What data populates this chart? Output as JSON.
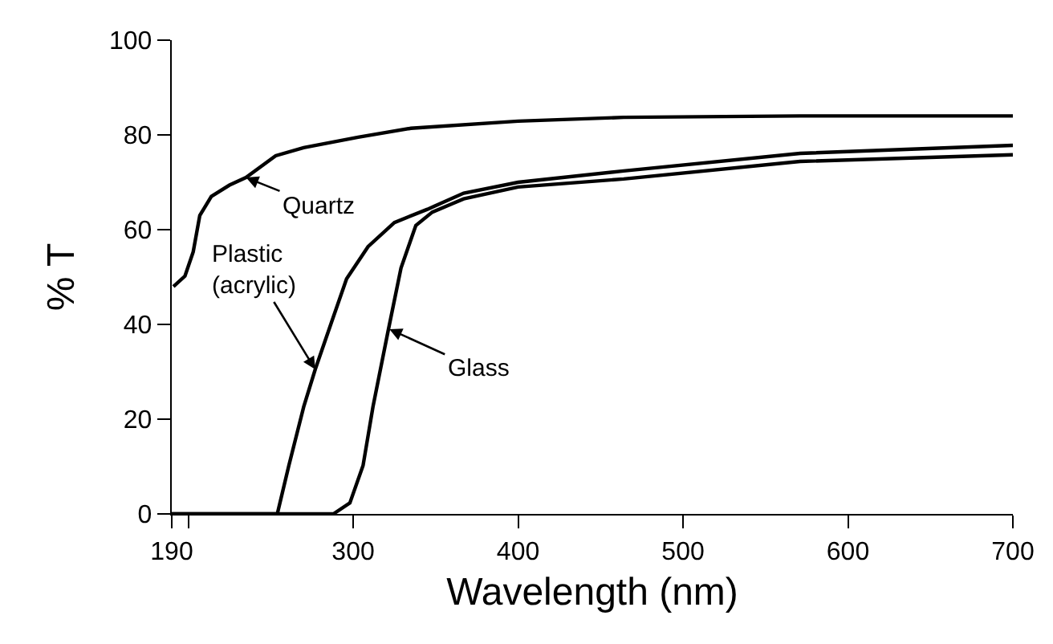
{
  "chart_data": {
    "type": "line",
    "xlabel": "Wavelength (nm)",
    "ylabel": "% T",
    "xlim": [
      190,
      700
    ],
    "xticks": [
      190,
      {
        "value": 200,
        "label": null
      },
      300,
      400,
      500,
      600,
      700
    ],
    "ylim": [
      0,
      100
    ],
    "yticks": [
      0,
      20,
      40,
      60,
      80,
      100
    ],
    "grid": false,
    "marker": "none",
    "line_style": "solid",
    "series": [
      {
        "color": "#000000",
        "x": [
          191,
          198,
          203,
          207,
          214,
          225,
          235,
          253,
          270,
          303,
          335,
          400,
          464,
          571,
          700
        ],
        "values": [
          48,
          50.2,
          55.3,
          63,
          67,
          69.4,
          71,
          75.6,
          77.3,
          79.5,
          81.4,
          82.9,
          83.7,
          84,
          84
        ]
      },
      {
        "color": "#000000",
        "x": [
          190,
          254,
          261,
          270,
          277,
          287,
          296,
          309,
          325,
          345,
          367,
          400,
          464,
          571,
          700
        ],
        "values": [
          0,
          0,
          10.2,
          22.6,
          30.5,
          40.6,
          49.6,
          56.4,
          61.5,
          64.3,
          67.7,
          70,
          72.4,
          76.1,
          77.8
        ]
      },
      {
        "color": "#000000",
        "x": [
          190,
          288,
          298,
          306,
          312,
          321,
          329,
          338,
          348,
          367,
          400,
          464,
          571,
          700
        ],
        "values": [
          0,
          0,
          2.3,
          10.2,
          22.6,
          38.3,
          51.9,
          60.9,
          63.7,
          66.5,
          69,
          70.7,
          74.4,
          75.8
        ]
      }
    ],
    "annotations": [
      {
        "text": "Quartz",
        "x": 235,
        "y": 71
      },
      {
        "text": "Plastic\n(acrylic)",
        "x": 277,
        "y": 30.5
      },
      {
        "text": "Glass",
        "x": 322,
        "y": 39
      }
    ]
  }
}
